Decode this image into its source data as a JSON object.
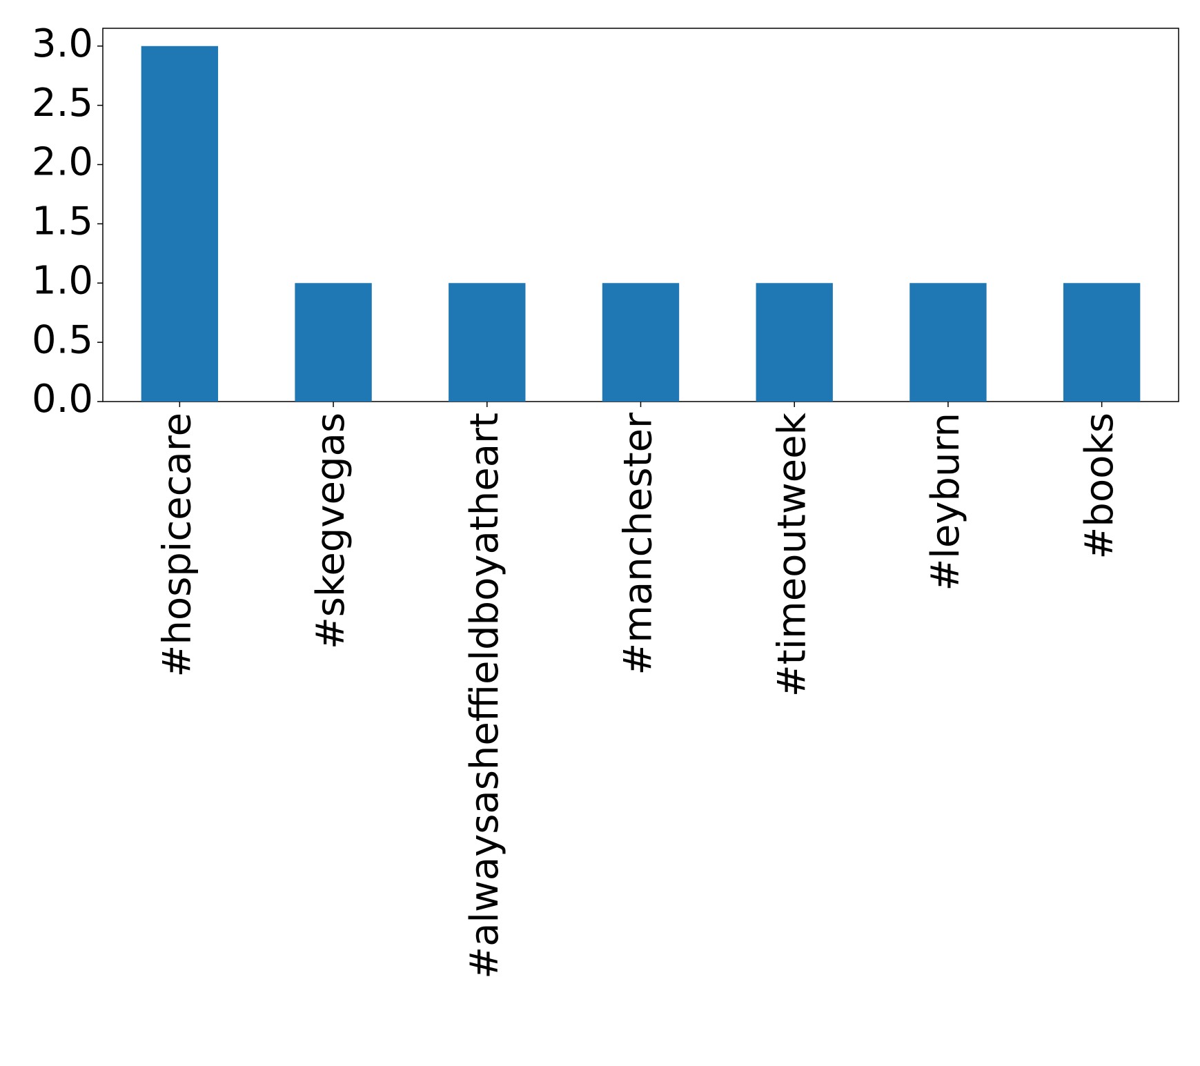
{
  "chart_data": {
    "type": "bar",
    "categories": [
      "#hospicecare",
      "#skegvegas",
      "#alwaysasheffieldboyatheart",
      "#manchester",
      "#timeoutweek",
      "#leyburn",
      "#books"
    ],
    "values": [
      3,
      1,
      1,
      1,
      1,
      1,
      1
    ],
    "color": "#1f77b4",
    "ylim": [
      0,
      3.15
    ],
    "yticks": [
      {
        "value": 0,
        "label": "0.0"
      },
      0.5,
      {
        "value": 1,
        "label": "1.0"
      },
      1.5,
      {
        "value": 2,
        "label": "2.0"
      },
      2.5,
      {
        "value": 3,
        "label": "3.0"
      }
    ],
    "grid": false
  }
}
